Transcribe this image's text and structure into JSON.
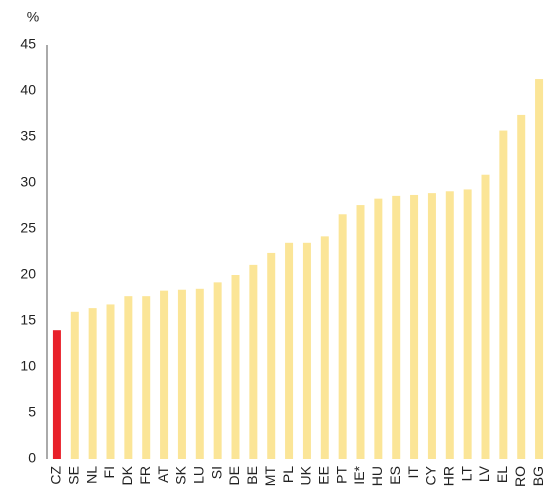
{
  "chart_data": {
    "type": "bar",
    "y_label": "%",
    "categories": [
      "CZ",
      "SE",
      "NL",
      "FI",
      "DK",
      "FR",
      "AT",
      "SK",
      "LU",
      "SI",
      "DE",
      "BE",
      "MT",
      "PL",
      "UK",
      "EE",
      "PT",
      "IE*",
      "HU",
      "ES",
      "IT",
      "CY",
      "HR",
      "LT",
      "LV",
      "EL",
      "RO",
      "BG"
    ],
    "values": [
      14.0,
      16.0,
      16.4,
      16.8,
      17.7,
      17.7,
      18.3,
      18.4,
      18.5,
      19.2,
      20.0,
      21.1,
      22.4,
      23.5,
      23.5,
      24.2,
      26.6,
      27.6,
      28.3,
      28.6,
      28.7,
      28.9,
      29.1,
      29.3,
      30.9,
      35.7,
      37.4,
      41.3
    ],
    "colors": [
      "#e8202a",
      "#fbe597",
      "#fbe597",
      "#fbe597",
      "#fbe597",
      "#fbe597",
      "#fbe597",
      "#fbe597",
      "#fbe597",
      "#fbe597",
      "#fbe597",
      "#fbe597",
      "#fbe597",
      "#fbe597",
      "#fbe597",
      "#fbe597",
      "#fbe597",
      "#fbe597",
      "#fbe597",
      "#fbe597",
      "#fbe597",
      "#fbe597",
      "#fbe597",
      "#fbe597",
      "#fbe597",
      "#fbe597",
      "#fbe597",
      "#fbe597"
    ],
    "ylim": [
      0,
      45
    ],
    "yticks": [
      0,
      5,
      10,
      15,
      20,
      25,
      30,
      35,
      40,
      45
    ],
    "grid": false
  }
}
